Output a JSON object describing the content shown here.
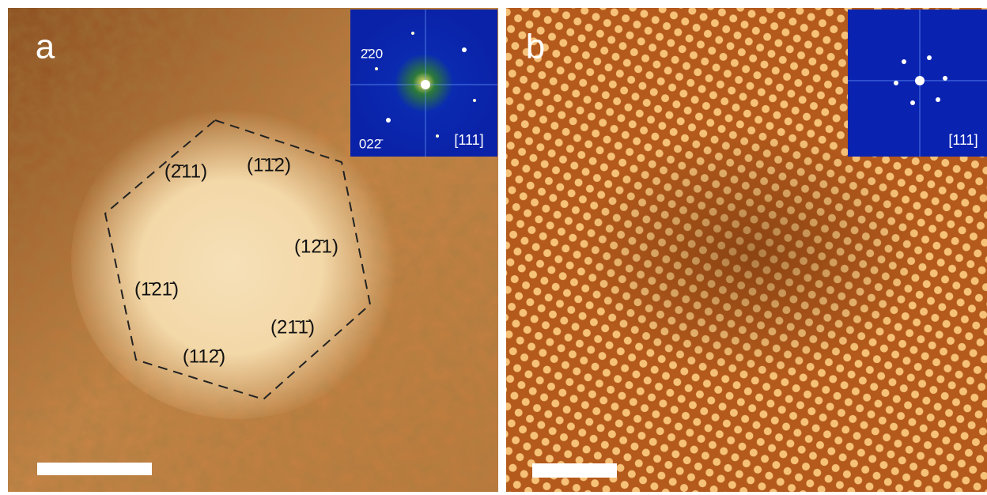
{
  "panels": [
    {
      "label": "a",
      "facets": [
        "(1̄1̄2)",
        "(2̄11)",
        "(12̄1)",
        "(1̄21̄)",
        "(21̄1̄)",
        "(112̄)"
      ],
      "inset": {
        "spots": [
          "2̄20",
          "022̄"
        ],
        "zone": "[111]"
      }
    },
    {
      "label": "b",
      "inset": {
        "zone": "[111]"
      }
    }
  ]
}
